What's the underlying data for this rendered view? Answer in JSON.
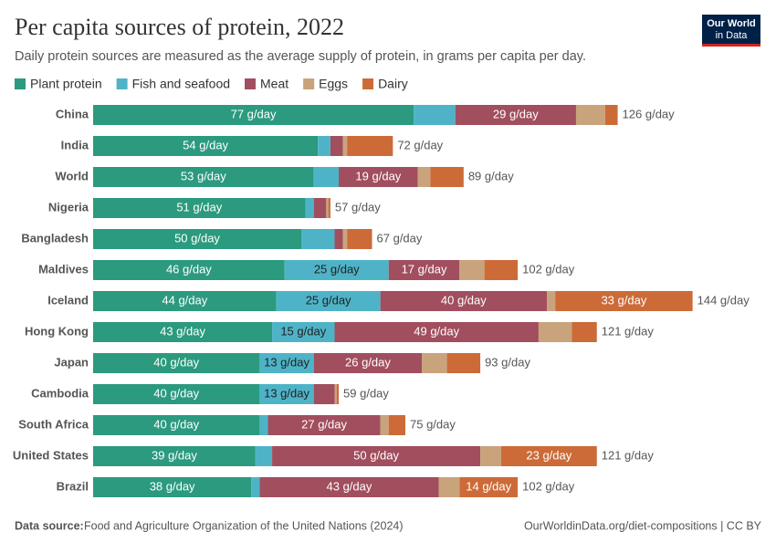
{
  "chart_data": {
    "type": "stacked-bar-horizontal",
    "title": "Per capita sources of protein, 2022",
    "subtitle": "Daily protein sources are measured as the average supply of protein, in grams per capita per day.",
    "logo": [
      "Our World",
      "in Data"
    ],
    "source_label": "Data source:",
    "source": "Food and Agriculture Organization of the United Nations (2024)",
    "credit": "OurWorldinData.org/diet-compositions | CC BY",
    "categories": [
      "China",
      "India",
      "World",
      "Nigeria",
      "Bangladesh",
      "Maldives",
      "Iceland",
      "Hong Kong",
      "Japan",
      "Cambodia",
      "South Africa",
      "United States",
      "Brazil"
    ],
    "total_labels": [
      "126 g/day",
      "72 g/day",
      "89 g/day",
      "57 g/day",
      "67 g/day",
      "102 g/day",
      "144 g/day",
      "121 g/day",
      "93 g/day",
      "59 g/day",
      "75 g/day",
      "121 g/day",
      "102 g/day"
    ],
    "series": [
      {
        "name": "Plant protein",
        "color": "#2b9a7e",
        "values": [
          77,
          54,
          53,
          51,
          50,
          46,
          44,
          43,
          40,
          40,
          40,
          39,
          38
        ],
        "value_labels": [
          "77 g/day",
          "54 g/day",
          "53 g/day",
          "51 g/day",
          "50 g/day",
          "46 g/day",
          "44 g/day",
          "43 g/day",
          "40 g/day",
          "40 g/day",
          "40 g/day",
          "39 g/day",
          "38 g/day"
        ]
      },
      {
        "name": "Fish and seafood",
        "color": "#4fb3c8",
        "values": [
          10,
          3,
          6,
          2,
          8,
          25,
          25,
          15,
          13,
          13,
          2,
          4,
          2
        ],
        "value_labels": [
          null,
          null,
          null,
          null,
          null,
          "25 g/day",
          "25 g/day",
          "15 g/day",
          "13 g/day",
          "13 g/day",
          null,
          null,
          null
        ]
      },
      {
        "name": "Meat",
        "color": "#a14e5e",
        "values": [
          29,
          3,
          19,
          3,
          2,
          17,
          40,
          49,
          26,
          5,
          27,
          50,
          43
        ],
        "value_labels": [
          "29 g/day",
          null,
          "19 g/day",
          null,
          null,
          "17 g/day",
          "40 g/day",
          "49 g/day",
          "26 g/day",
          null,
          "27 g/day",
          "50 g/day",
          "43 g/day"
        ]
      },
      {
        "name": "Eggs",
        "color": "#c9a37c",
        "values": [
          7,
          1,
          3,
          0.5,
          1,
          6,
          2,
          8,
          6,
          0.5,
          2,
          5,
          5
        ],
        "value_labels": [
          null,
          null,
          null,
          null,
          null,
          null,
          null,
          null,
          null,
          null,
          null,
          null,
          null
        ]
      },
      {
        "name": "Dairy",
        "color": "#cc6b38",
        "values": [
          3,
          11,
          8,
          0.5,
          6,
          8,
          33,
          6,
          8,
          0.5,
          4,
          23,
          14
        ],
        "value_labels": [
          null,
          null,
          null,
          null,
          null,
          null,
          "33 g/day",
          null,
          null,
          null,
          null,
          "23 g/day",
          "14 g/day"
        ]
      }
    ]
  }
}
